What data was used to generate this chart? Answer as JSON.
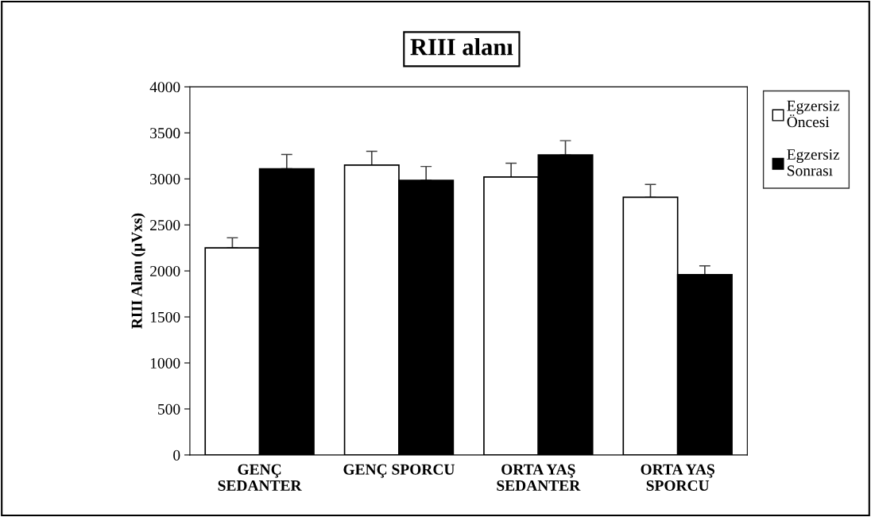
{
  "chart_data": {
    "type": "bar",
    "title": "RIII alanı",
    "ylabel": "RIII Alanı (µVxs)",
    "categories": [
      "GENÇ\nSEDANTER",
      "GENÇ SPORCU",
      "ORTA YAŞ\nSEDANTER",
      "ORTA YAŞ\nSPORCU"
    ],
    "series": [
      {
        "name": "Egzersiz\nÖncesi",
        "color": "#ffffff",
        "values": [
          2250,
          3150,
          3020,
          2800
        ],
        "errors": [
          [
            2250,
            2360
          ],
          [
            3150,
            3300
          ],
          [
            3020,
            3170
          ],
          [
            2800,
            2940
          ]
        ]
      },
      {
        "name": "Egzersiz\nSonrası",
        "color": "#000000",
        "values": [
          3110,
          2985,
          3260,
          1960
        ],
        "errors": [
          [
            3110,
            3265
          ],
          [
            2985,
            3135
          ],
          [
            3260,
            3415
          ],
          [
            1960,
            2055
          ]
        ]
      }
    ],
    "ylim": [
      0,
      4000
    ],
    "yticks": [
      0,
      500,
      1000,
      1500,
      2000,
      2500,
      3000,
      3500,
      4000
    ],
    "grid": false,
    "legend": "right"
  }
}
